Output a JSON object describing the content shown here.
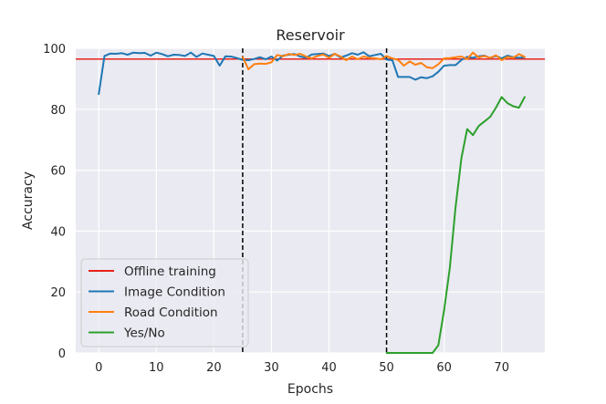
{
  "chart_data": {
    "type": "line",
    "title": "Reservoir",
    "xlabel": "Epochs",
    "ylabel": "Accuracy",
    "xlim": [
      -4,
      77.5
    ],
    "ylim": [
      0,
      100
    ],
    "xticks": [
      0,
      10,
      20,
      30,
      40,
      50,
      60,
      70
    ],
    "yticks": [
      0,
      20,
      40,
      60,
      80,
      100
    ],
    "grid": true,
    "background": "#eaeaf2",
    "legend_position": "lower-left",
    "hlines": [
      {
        "name": "Offline training",
        "y": 96.5,
        "color": "#e8221b"
      }
    ],
    "vlines": [
      {
        "x": 25,
        "style": "dashed",
        "color": "#000000"
      },
      {
        "x": 50,
        "style": "dashed",
        "color": "#000000"
      }
    ],
    "series": [
      {
        "name": "Image Condition",
        "color": "#1f77b4",
        "x": [
          0,
          1,
          2,
          3,
          4,
          5,
          6,
          7,
          8,
          9,
          10,
          11,
          12,
          13,
          14,
          15,
          16,
          17,
          18,
          19,
          20,
          21,
          22,
          23,
          24,
          25,
          26,
          27,
          28,
          29,
          30,
          31,
          32,
          33,
          34,
          35,
          36,
          37,
          38,
          39,
          40,
          41,
          42,
          43,
          44,
          45,
          46,
          47,
          48,
          49,
          50,
          51,
          52,
          53,
          54,
          55,
          56,
          57,
          58,
          59,
          60,
          61,
          62,
          63,
          64,
          65,
          66,
          67,
          68,
          69,
          70,
          71,
          72,
          73,
          74
        ],
        "values": [
          85,
          97.5,
          98.3,
          98.2,
          98.4,
          97.9,
          98.6,
          98.4,
          98.5,
          97.6,
          98.6,
          98.1,
          97.4,
          97.9,
          97.8,
          97.5,
          98.6,
          97.2,
          98.3,
          97.9,
          97.5,
          94.3,
          97.4,
          97.3,
          96.8,
          96.2,
          96.1,
          96.5,
          97.1,
          96.4,
          97.3,
          96.0,
          97.6,
          97.9,
          98.1,
          97.3,
          96.9,
          98.0,
          98.1,
          98.3,
          97.5,
          98.2,
          97.0,
          97.6,
          98.4,
          97.9,
          98.7,
          97.4,
          97.8,
          98.2,
          96.3,
          96.1,
          90.6,
          90.6,
          90.6,
          89.7,
          90.5,
          90.2,
          90.8,
          92.3,
          94.3,
          94.5,
          94.5,
          96.2,
          97.2,
          96.9,
          97.4,
          97.6,
          96.8,
          97.5,
          96.7,
          97.6,
          97.1,
          96.9,
          97.1
        ]
      },
      {
        "name": "Road Condition",
        "color": "#ff7f0e",
        "x": [
          25,
          26,
          27,
          28,
          29,
          30,
          31,
          32,
          33,
          34,
          35,
          36,
          37,
          38,
          39,
          40,
          41,
          42,
          43,
          44,
          45,
          46,
          47,
          48,
          49,
          50,
          51,
          52,
          53,
          54,
          55,
          56,
          57,
          58,
          59,
          60,
          61,
          62,
          63,
          64,
          65,
          66,
          67,
          68,
          69,
          70,
          71,
          72,
          73,
          74
        ],
        "values": [
          97.2,
          93.1,
          94.8,
          95.0,
          94.9,
          95.4,
          97.8,
          97.4,
          98.1,
          97.8,
          98.2,
          97.3,
          96.7,
          97.5,
          98.0,
          96.9,
          98.2,
          97.3,
          96.1,
          97.3,
          96.4,
          97.3,
          96.9,
          96.7,
          96.4,
          97.5,
          96.7,
          96.2,
          94.3,
          95.7,
          94.6,
          95.2,
          93.8,
          93.5,
          94.8,
          96.7,
          96.8,
          97.1,
          97.3,
          96.5,
          98.6,
          97.0,
          97.5,
          96.9,
          97.7,
          96.1,
          97.2,
          96.9,
          98.1,
          97.2
        ]
      },
      {
        "name": "Yes/No",
        "color": "#2ca02c",
        "x": [
          50,
          51,
          52,
          53,
          54,
          55,
          56,
          57,
          58,
          59,
          60,
          61,
          62,
          63,
          64,
          65,
          66,
          67,
          68,
          69,
          70,
          71,
          72,
          73,
          74
        ],
        "values": [
          0,
          0,
          0,
          0,
          0,
          0,
          0,
          0,
          0,
          2.5,
          14,
          28,
          48,
          64,
          73.5,
          71.5,
          74.5,
          76,
          77.5,
          80.5,
          84,
          82,
          81,
          80.5,
          84
        ]
      }
    ]
  }
}
